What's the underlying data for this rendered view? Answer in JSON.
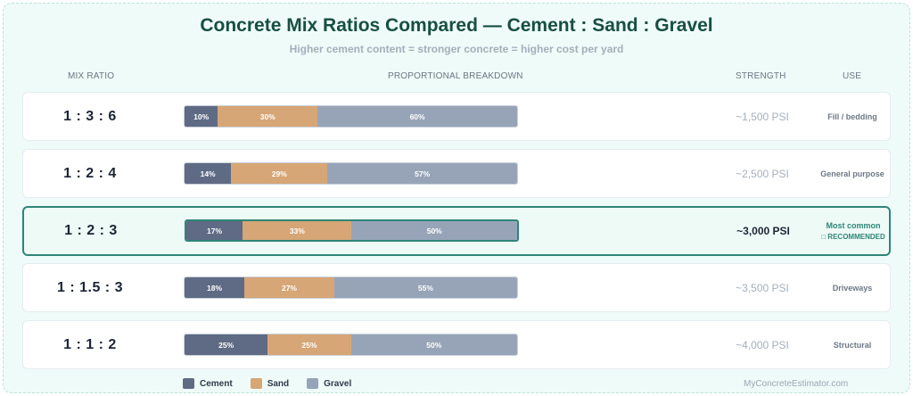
{
  "title": "Concrete Mix Ratios Compared — Cement : Sand : Gravel",
  "subtitle": "Higher cement content = stronger concrete = higher cost per yard",
  "headers": {
    "ratio": "MIX RATIO",
    "breakdown": "PROPORTIONAL BREAKDOWN",
    "strength": "STRENGTH",
    "use": "USE"
  },
  "colors": {
    "cement": "#5f6b84",
    "sand": "#d6a676",
    "gravel": "#97a4b8",
    "accent": "#2f8577"
  },
  "legend": [
    "Cement",
    "Sand",
    "Gravel"
  ],
  "credit": "MyConcreteEstimator.com",
  "chart_data": {
    "type": "bar",
    "stacked": true,
    "orientation": "horizontal",
    "categories": [
      "1 : 3 : 6",
      "1 : 2 : 4",
      "1 : 2 : 3",
      "1 : 1.5 : 3",
      "1 : 1 : 2"
    ],
    "series": [
      {
        "name": "Cement",
        "values": [
          10,
          14,
          17,
          18,
          25
        ]
      },
      {
        "name": "Sand",
        "values": [
          30,
          29,
          33,
          27,
          25
        ]
      },
      {
        "name": "Gravel",
        "values": [
          60,
          57,
          50,
          55,
          50
        ]
      }
    ],
    "data_labels": [
      [
        "10%",
        "30%",
        "60%"
      ],
      [
        "14%",
        "29%",
        "57%"
      ],
      [
        "17%",
        "33%",
        "50%"
      ],
      [
        "18%",
        "27%",
        "55%"
      ],
      [
        "25%",
        "25%",
        "50%"
      ]
    ],
    "strength": [
      "~1,500 PSI",
      "~2,500 PSI",
      "~3,000 PSI",
      "~3,500 PSI",
      "~4,000 PSI"
    ],
    "use": [
      "Fill / bedding",
      "General purpose",
      "Most common",
      "Driveways",
      "Structural"
    ],
    "highlight_index": 2,
    "highlight_badge": "□ RECOMMENDED",
    "legend_position": "bottom"
  }
}
